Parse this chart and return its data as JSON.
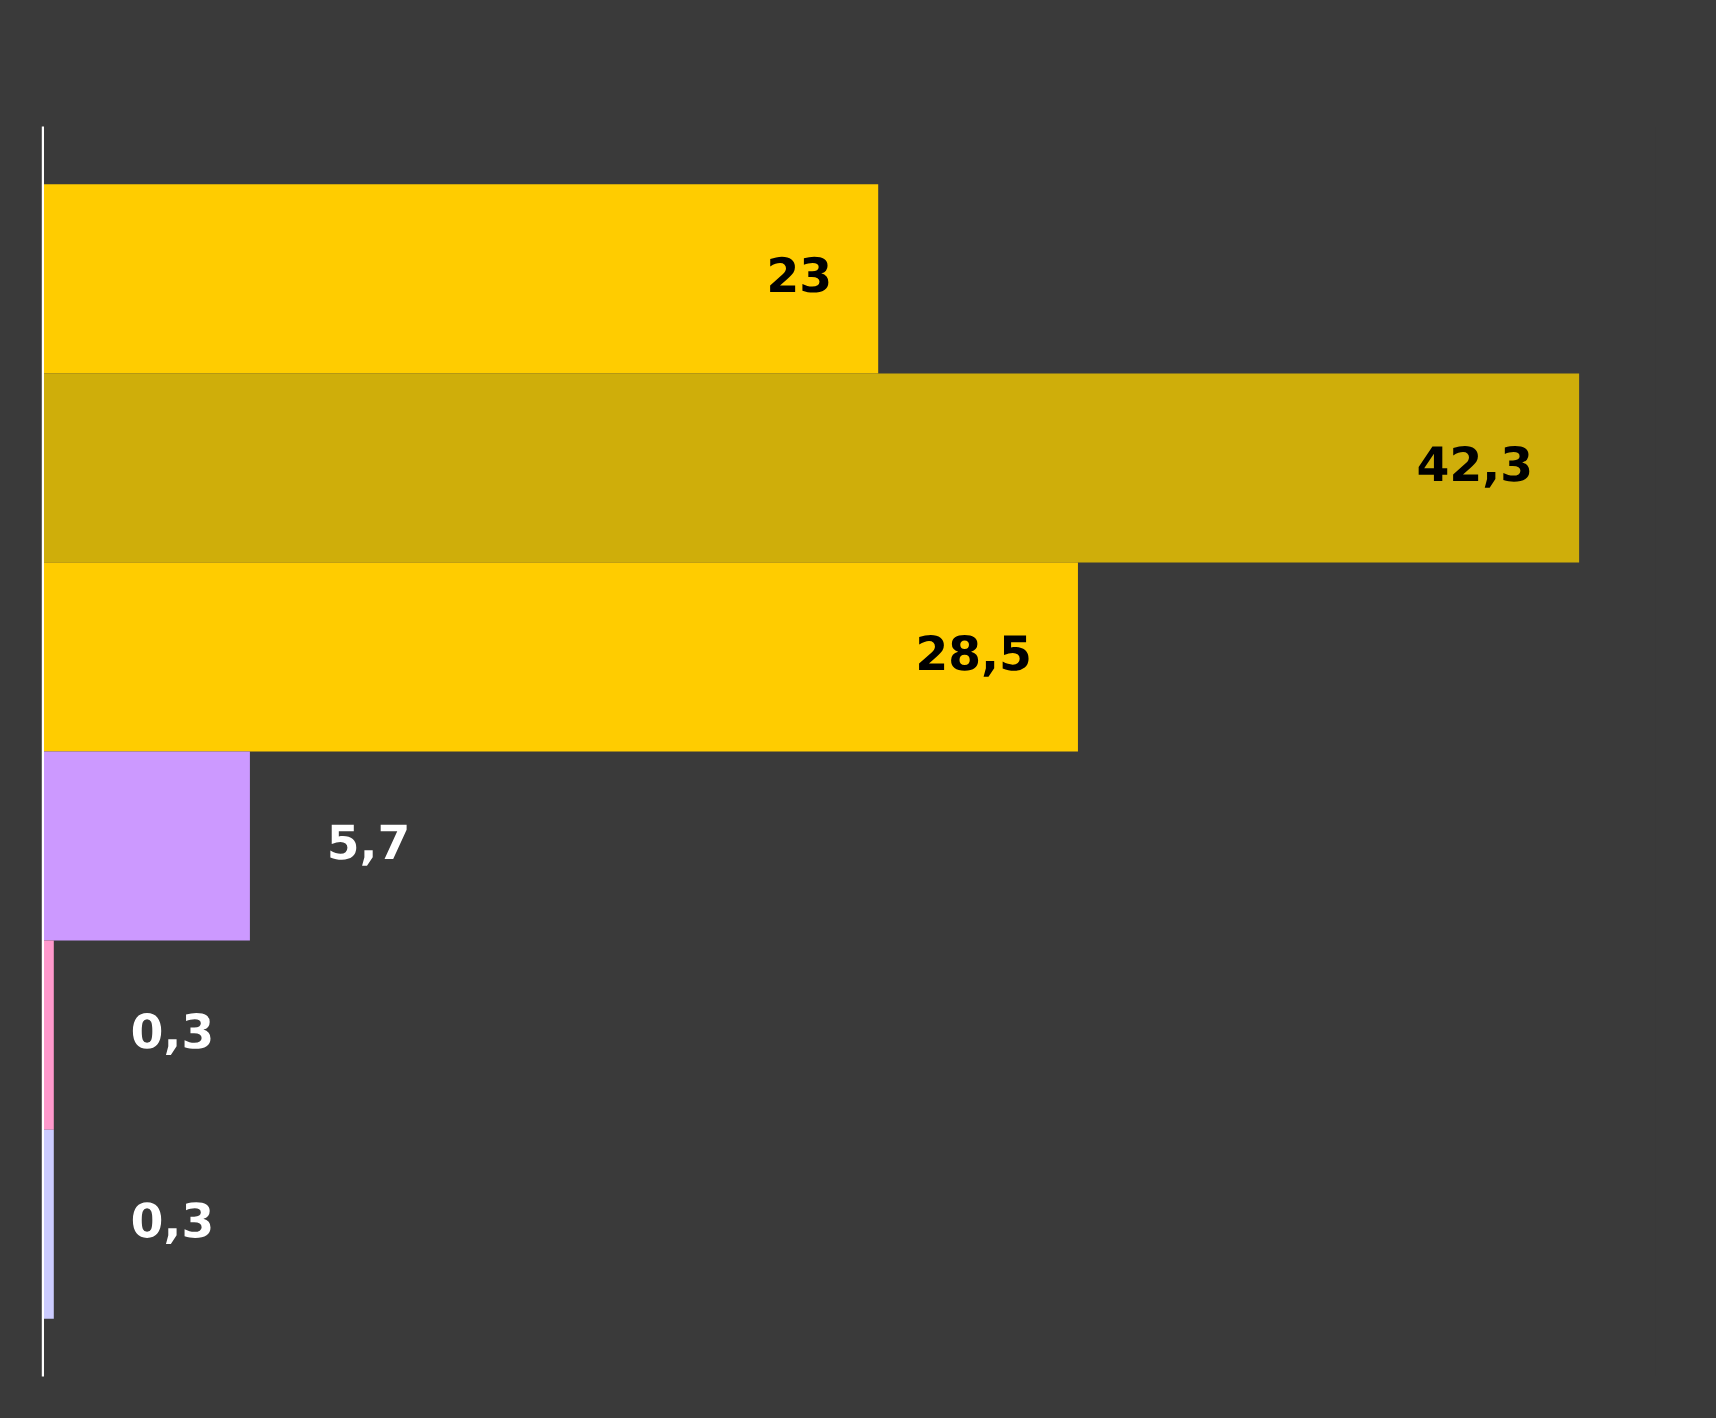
{
  "chart_data": {
    "type": "bar",
    "orientation": "horizontal",
    "categories": [
      null,
      null,
      null,
      null,
      null,
      null
    ],
    "values": [
      23,
      42.3,
      28.5,
      5.7,
      0.3,
      0.3
    ],
    "value_labels": [
      "23",
      "42,3",
      "28,5",
      "5,7",
      "0,3",
      "0,3"
    ],
    "colors": [
      "#ffcc00",
      "#cfae0a",
      "#ffcc00",
      "#cc99ff",
      "#ff99cc",
      "#ccccff"
    ],
    "grid": false,
    "legend": false
  }
}
